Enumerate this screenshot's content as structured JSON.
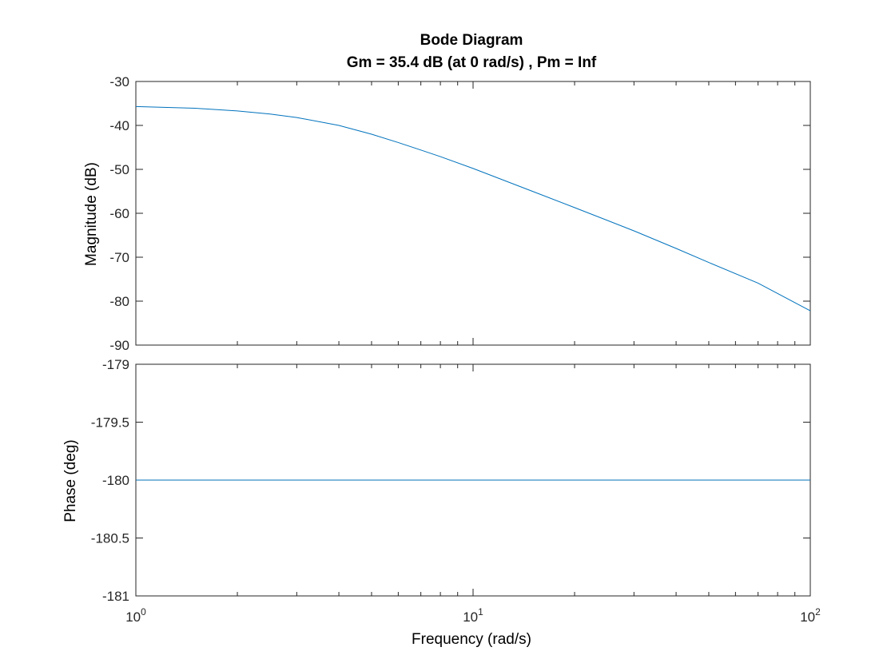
{
  "chart_data": [
    {
      "type": "line",
      "title": "Bode Diagram",
      "subtitle": "Gm = 35.4 dB (at 0 rad/s) ,  Pm = Inf",
      "ylabel": "Magnitude (dB)",
      "xlabel": "",
      "xscale": "log",
      "xlim": [
        1,
        100
      ],
      "ylim": [
        -90,
        -30
      ],
      "yticks": [
        "-30",
        "-40",
        "-50",
        "-60",
        "-70",
        "-80",
        "-90"
      ],
      "ytick_values": [
        -30,
        -40,
        -50,
        -60,
        -70,
        -80,
        -90
      ],
      "color": "#0072BD",
      "grid": false,
      "series": [
        {
          "x": [
            1,
            1.5,
            2,
            2.5,
            3,
            4,
            5,
            6,
            7,
            8,
            10,
            15,
            20,
            30,
            40,
            50,
            70,
            100
          ],
          "y": [
            -35.7,
            -36.1,
            -36.7,
            -37.4,
            -38.2,
            -40.0,
            -42.0,
            -43.9,
            -45.6,
            -47.1,
            -49.8,
            -55.0,
            -58.7,
            -64.0,
            -68.0,
            -71.2,
            -75.9,
            -82.2
          ]
        }
      ]
    },
    {
      "type": "line",
      "title": "",
      "ylabel": "Phase (deg)",
      "xlabel": "Frequency  (rad/s)",
      "xscale": "log",
      "xlim": [
        1,
        100
      ],
      "ylim": [
        -181,
        -179
      ],
      "yticks": [
        "-179",
        "-179.5",
        "-180",
        "-180.5",
        "-181"
      ],
      "ytick_values": [
        -179,
        -179.5,
        -180,
        -180.5,
        -181
      ],
      "xticks": [
        {
          "base": "10",
          "exp": "0"
        },
        {
          "base": "10",
          "exp": "1"
        },
        {
          "base": "10",
          "exp": "2"
        }
      ],
      "color": "#0072BD",
      "grid": false,
      "series": [
        {
          "x": [
            1,
            100
          ],
          "y": [
            -180,
            -180
          ]
        }
      ]
    }
  ]
}
